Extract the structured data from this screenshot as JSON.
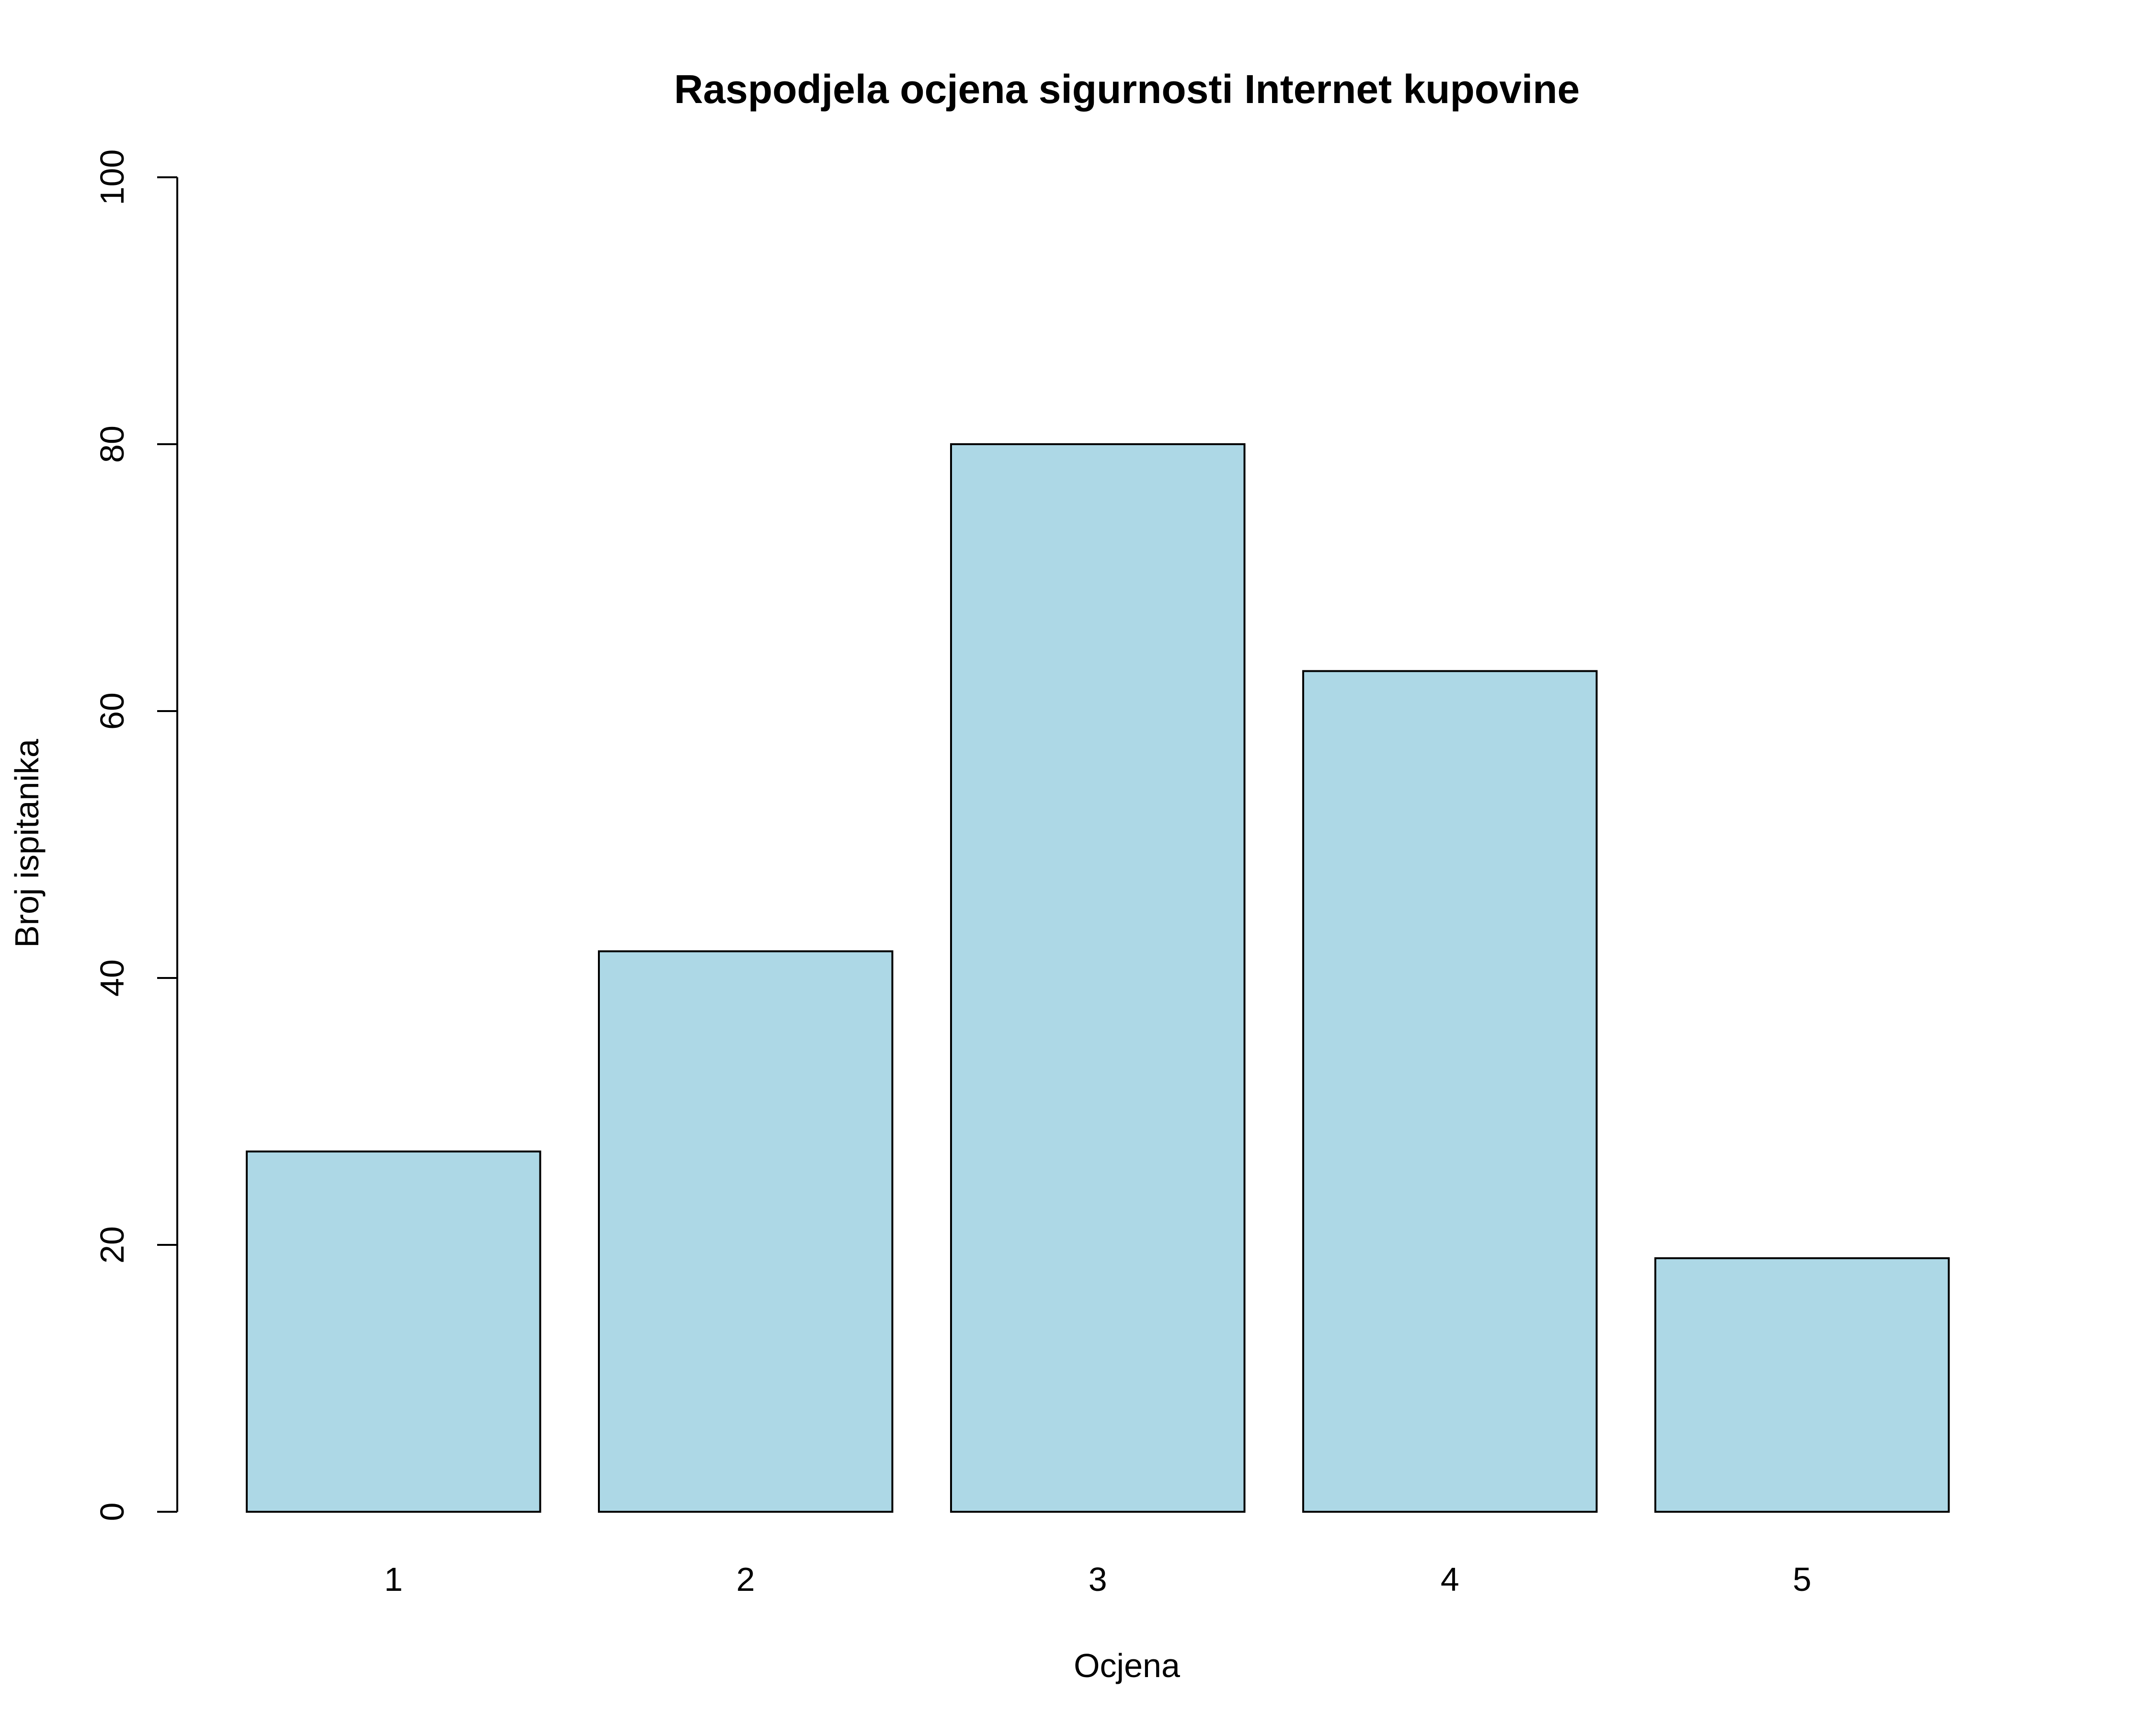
{
  "chart_data": {
    "type": "bar",
    "title": "Raspodjela ocjena sigurnosti Internet kupovine",
    "xlabel": "Ocjena",
    "ylabel": "Broj ispitanika",
    "categories": [
      "1",
      "2",
      "3",
      "4",
      "5"
    ],
    "values": [
      27,
      42,
      80,
      63,
      19
    ],
    "ylim": [
      0,
      100
    ],
    "yticks": [
      "0",
      "20",
      "40",
      "60",
      "80",
      "100"
    ],
    "bar_color": "#add8e6",
    "grid": false
  }
}
